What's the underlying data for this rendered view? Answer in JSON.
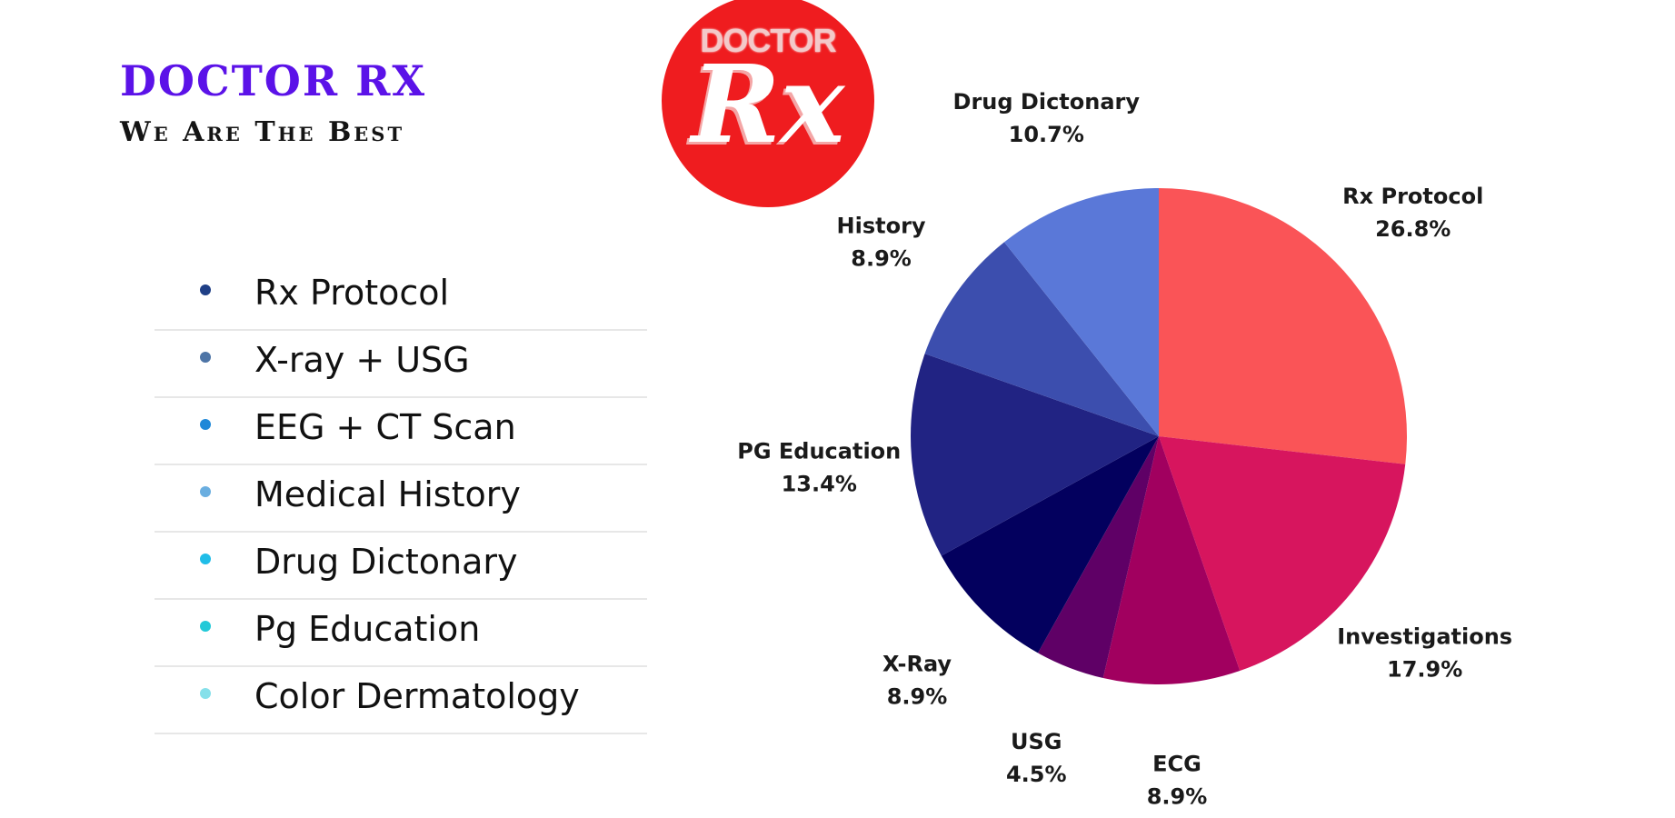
{
  "brand": {
    "title": "DOCTOR RX",
    "tagline": "We Are  The Best",
    "logo_top_text": "DOCTOR",
    "logo_main_text": "Rx",
    "logo_color": "#ef1c1f"
  },
  "legend": {
    "items": [
      {
        "label": "Rx Protocol",
        "color": "#1f3f86"
      },
      {
        "label": "X-ray + USG",
        "color": "#4d74a6"
      },
      {
        "label": "EEG + CT Scan",
        "color": "#1e88d8"
      },
      {
        "label": "Medical History",
        "color": "#6aaee0"
      },
      {
        "label": "Drug Dictonary",
        "color": "#20bde8"
      },
      {
        "label": "Pg Education",
        "color": "#22c9d8"
      },
      {
        "label": "Color Dermatology",
        "color": "#86e0ea"
      }
    ]
  },
  "chart_data": {
    "type": "pie",
    "title": "",
    "slices": [
      {
        "label": "Rx Protocol",
        "percent_label": "26.8%",
        "value": 26.8,
        "color": "#fa5457"
      },
      {
        "label": "Investigations",
        "percent_label": "17.9%",
        "value": 17.9,
        "color": "#d7155e"
      },
      {
        "label": "ECG",
        "percent_label": "8.9%",
        "value": 8.9,
        "color": "#a1005f"
      },
      {
        "label": "USG",
        "percent_label": "4.5%",
        "value": 4.5,
        "color": "#5f0066"
      },
      {
        "label": "X-Ray",
        "percent_label": "8.9%",
        "value": 8.9,
        "color": "#03005e"
      },
      {
        "label": "PG Education",
        "percent_label": "13.4%",
        "value": 13.4,
        "color": "#212383"
      },
      {
        "label": "History",
        "percent_label": "8.9%",
        "value": 8.9,
        "color": "#3c4eae"
      },
      {
        "label": "Drug Dictonary",
        "percent_label": "10.7%",
        "value": 10.7,
        "color": "#5a78d8"
      }
    ]
  }
}
